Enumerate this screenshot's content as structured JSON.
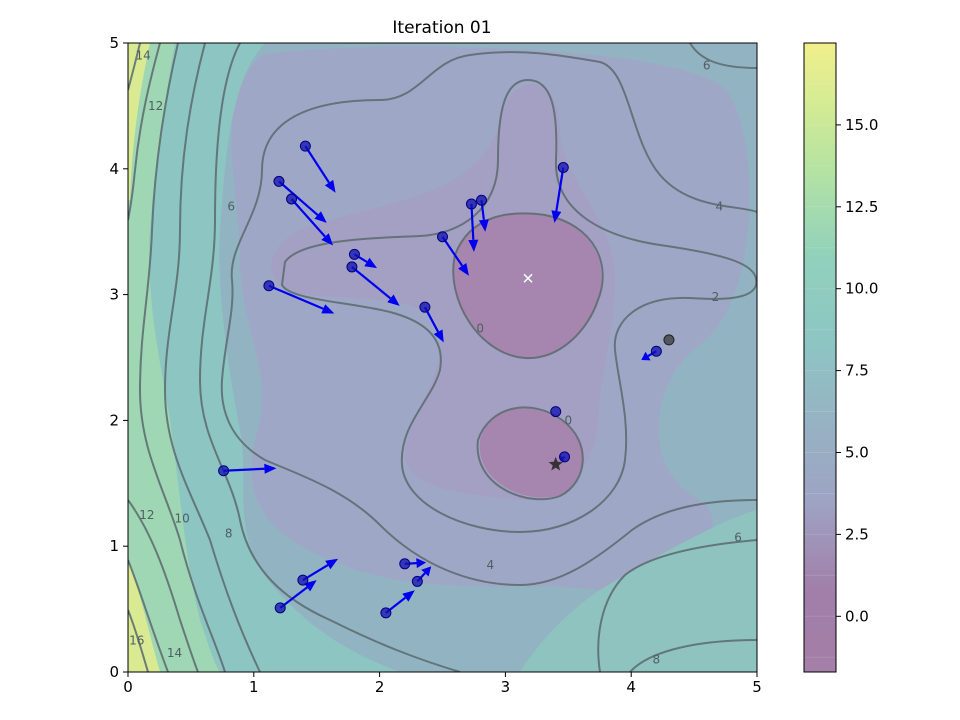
{
  "chart_data": {
    "type": "contour",
    "title": "Iteration 01",
    "xlabel": "",
    "ylabel": "",
    "xlim": [
      0,
      5
    ],
    "ylim": [
      0,
      5
    ],
    "x_ticks": [
      "0",
      "1",
      "2",
      "3",
      "4",
      "5"
    ],
    "y_ticks": [
      "0",
      "1",
      "2",
      "3",
      "4",
      "5"
    ],
    "colorbar": {
      "min": -1.7,
      "max": 17.5,
      "ticks": [
        "0.0",
        "2.5",
        "5.0",
        "7.5",
        "10.0",
        "12.5",
        "15.0"
      ],
      "tick_values": [
        0,
        2.5,
        5,
        7.5,
        10,
        12.5,
        15
      ],
      "colormap": "viridis",
      "alpha": 0.5
    },
    "contour_labels": [
      {
        "text": "14",
        "x": 0.12,
        "y": 4.9
      },
      {
        "text": "12",
        "x": 0.22,
        "y": 4.5
      },
      {
        "text": "6",
        "x": 0.82,
        "y": 3.7
      },
      {
        "text": "6",
        "x": 4.6,
        "y": 4.82
      },
      {
        "text": "4",
        "x": 4.7,
        "y": 3.7
      },
      {
        "text": "2",
        "x": 4.67,
        "y": 2.98
      },
      {
        "text": "0",
        "x": 2.8,
        "y": 2.73
      },
      {
        "text": "0",
        "x": 3.5,
        "y": 2.0
      },
      {
        "text": "12",
        "x": 0.15,
        "y": 1.25
      },
      {
        "text": "10",
        "x": 0.43,
        "y": 1.22
      },
      {
        "text": "8",
        "x": 0.8,
        "y": 1.1
      },
      {
        "text": "4",
        "x": 2.88,
        "y": 0.85
      },
      {
        "text": "6",
        "x": 4.85,
        "y": 1.07
      },
      {
        "text": "8",
        "x": 4.2,
        "y": 0.1
      },
      {
        "text": "16",
        "x": 0.07,
        "y": 0.25
      },
      {
        "text": "14",
        "x": 0.37,
        "y": 0.15
      }
    ],
    "true_minimum": {
      "x": 3.18,
      "y": 3.13
    },
    "best_point": {
      "x": 3.4,
      "y": 1.65
    },
    "prev_point": {
      "x": 4.3,
      "y": 2.64
    },
    "particles": [
      {
        "x": 1.41,
        "y": 4.18,
        "vx": 0.24,
        "vy": -0.37
      },
      {
        "x": 1.2,
        "y": 3.9,
        "vx": 0.38,
        "vy": -0.33
      },
      {
        "x": 1.3,
        "y": 3.76,
        "vx": 0.33,
        "vy": -0.37
      },
      {
        "x": 1.8,
        "y": 3.32,
        "vx": 0.18,
        "vy": -0.11
      },
      {
        "x": 1.78,
        "y": 3.22,
        "vx": 0.38,
        "vy": -0.31
      },
      {
        "x": 1.12,
        "y": 3.07,
        "vx": 0.52,
        "vy": -0.22
      },
      {
        "x": 2.5,
        "y": 3.46,
        "vx": 0.21,
        "vy": -0.31
      },
      {
        "x": 2.73,
        "y": 3.72,
        "vx": 0.02,
        "vy": -0.38
      },
      {
        "x": 2.81,
        "y": 3.75,
        "vx": 0.03,
        "vy": -0.25
      },
      {
        "x": 2.36,
        "y": 2.9,
        "vx": 0.15,
        "vy": -0.28
      },
      {
        "x": 3.46,
        "y": 4.01,
        "vx": -0.07,
        "vy": -0.44
      },
      {
        "x": 4.2,
        "y": 2.55,
        "vx": -0.12,
        "vy": -0.07
      },
      {
        "x": 3.4,
        "y": 2.07,
        "vx": 0.0,
        "vy": 0.0
      },
      {
        "x": 3.47,
        "y": 1.71,
        "vx": -0.03,
        "vy": -0.02
      },
      {
        "x": 0.76,
        "y": 1.6,
        "vx": 0.42,
        "vy": 0.02
      },
      {
        "x": 1.21,
        "y": 0.51,
        "vx": 0.29,
        "vy": 0.22
      },
      {
        "x": 1.39,
        "y": 0.73,
        "vx": 0.28,
        "vy": 0.17
      },
      {
        "x": 2.05,
        "y": 0.47,
        "vx": 0.23,
        "vy": 0.18
      },
      {
        "x": 2.2,
        "y": 0.86,
        "vx": 0.17,
        "vy": 0.01
      },
      {
        "x": 2.3,
        "y": 0.72,
        "vx": 0.11,
        "vy": 0.12
      }
    ]
  }
}
